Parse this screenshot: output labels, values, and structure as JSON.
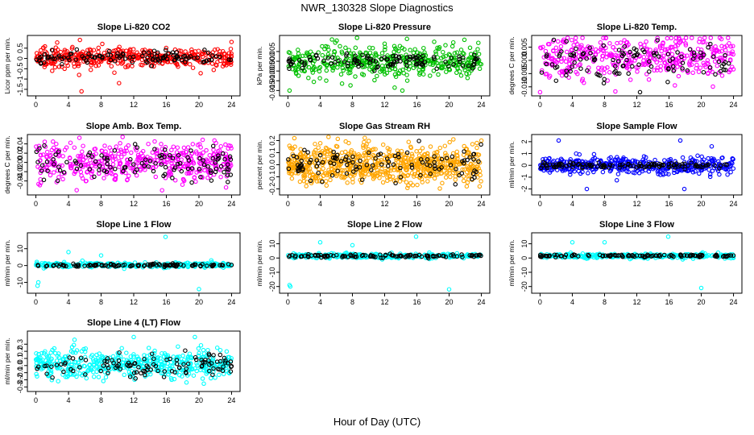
{
  "figure": {
    "title": "NWR_130328  Slope Diagnostics",
    "xlabel": "Hour of Day (UTC)"
  },
  "chart_data": [
    {
      "type": "scatter",
      "title": "Slope Li-820 CO2",
      "xlabel": "",
      "ylabel": "Licor ppm per min.",
      "xlim": [
        0,
        24
      ],
      "ylim": [
        -1.7,
        1.0
      ],
      "xticks": [
        "0",
        "4",
        "8",
        "12",
        "16",
        "20",
        "24"
      ],
      "yticks": [
        -1.5,
        -1.0,
        -0.5,
        0.0,
        0.5
      ],
      "ytick_labels": [
        "-1.5",
        "-1",
        "-0.5",
        "0",
        "0.5"
      ],
      "series": [
        {
          "color": "#ff0000",
          "n": 420,
          "center": 0.05,
          "spread": 0.22,
          "outliers": [
            [
              2.0,
              -0.6
            ],
            [
              5.3,
              -0.8
            ],
            [
              5.6,
              -1.6
            ],
            [
              10.2,
              -1.2
            ],
            [
              24.0,
              0.8
            ],
            [
              5.4,
              0.9
            ]
          ]
        },
        {
          "color": "#000000",
          "n": 110,
          "center": 0.05,
          "spread": 0.15,
          "outliers": []
        }
      ]
    },
    {
      "type": "scatter",
      "title": "Slope Li-820 Pressure",
      "xlabel": "",
      "ylabel": "kPa per min.",
      "xlim": [
        0,
        24
      ],
      "ylim": [
        -0.0165,
        0.012
      ],
      "xticks": [
        "0",
        "4",
        "8",
        "12",
        "16",
        "20",
        "24"
      ],
      "yticks": [
        -0.015,
        -0.01,
        -0.005,
        0.0,
        0.005
      ],
      "ytick_labels": [
        "-0.015",
        "-0.010",
        "-0.005",
        "0.000",
        "0.005"
      ],
      "series": [
        {
          "color": "#00c000",
          "n": 420,
          "center": 0.0,
          "spread": 0.0045,
          "outliers": [
            [
              21.9,
              0.011
            ],
            [
              12.0,
              0.009
            ],
            [
              0.2,
              -0.015
            ],
            [
              14.2,
              -0.015
            ]
          ]
        },
        {
          "color": "#000000",
          "n": 110,
          "center": 0.0,
          "spread": 0.002,
          "outliers": []
        }
      ]
    },
    {
      "type": "scatter",
      "title": "Slope Li-820 Temp.",
      "xlabel": "",
      "ylabel": "degrees C per min.",
      "xlim": [
        0,
        24
      ],
      "ylim": [
        -0.0125,
        0.0085
      ],
      "xticks": [
        "0",
        "4",
        "8",
        "12",
        "16",
        "20",
        "24"
      ],
      "yticks": [
        -0.01,
        -0.005,
        0.0,
        0.005
      ],
      "ytick_labels": [
        "-0.010",
        "-0.005",
        "0.000",
        "0.005"
      ],
      "series": [
        {
          "color": "#ff00ff",
          "n": 420,
          "center": 0.0015,
          "spread": 0.004,
          "outliers": [
            [
              0.0,
              -0.012
            ],
            [
              22.5,
              0.008
            ]
          ]
        },
        {
          "color": "#000000",
          "n": 110,
          "center": 0.0,
          "spread": 0.0035,
          "outliers": [
            [
              12.4,
              -0.012
            ]
          ]
        }
      ]
    },
    {
      "type": "scatter",
      "title": "Slope Amb. Box Temp.",
      "xlabel": "",
      "ylabel": "degrees C per min.",
      "xlim": [
        0,
        24
      ],
      "ylim": [
        -0.065,
        0.055
      ],
      "xticks": [
        "0",
        "4",
        "8",
        "12",
        "16",
        "20",
        "24"
      ],
      "yticks": [
        -0.04,
        -0.02,
        0.0,
        0.02,
        0.04
      ],
      "ytick_labels": [
        "-0.04",
        "-0.02",
        "0.00",
        "0.02",
        "0.04"
      ],
      "series": [
        {
          "color": "#ff00ff",
          "n": 460,
          "center": 0.0,
          "spread": 0.02,
          "outliers": [
            [
              5.0,
              -0.06
            ]
          ]
        },
        {
          "color": "#000000",
          "n": 110,
          "center": 0.0,
          "spread": 0.018,
          "outliers": []
        }
      ]
    },
    {
      "type": "scatter",
      "title": "Slope Gas Stream RH",
      "xlabel": "",
      "ylabel": "percent per min.",
      "xlim": [
        0,
        24
      ],
      "ylim": [
        -0.23,
        0.23
      ],
      "xticks": [
        "0",
        "4",
        "8",
        "12",
        "16",
        "20",
        "24"
      ],
      "yticks": [
        -0.2,
        -0.1,
        0.0,
        0.1,
        0.2
      ],
      "ytick_labels": [
        "-0.2",
        "-0.1",
        "0.0",
        "0.1",
        "0.2"
      ],
      "series": [
        {
          "color": "#ffa500",
          "n": 700,
          "center": 0.0,
          "spread": 0.08,
          "outliers": [
            [
              0.8,
              0.22
            ],
            [
              24.0,
              0.2
            ]
          ]
        },
        {
          "color": "#000000",
          "n": 110,
          "center": 0.0,
          "spread": 0.07,
          "outliers": []
        }
      ]
    },
    {
      "type": "scatter",
      "title": "Slope Sample Flow",
      "xlabel": "",
      "ylabel": "ml/min per min.",
      "xlim": [
        0,
        24
      ],
      "ylim": [
        -2.3,
        2.4
      ],
      "xticks": [
        "0",
        "4",
        "8",
        "12",
        "16",
        "20",
        "24"
      ],
      "yticks": [
        -2,
        -1,
        0,
        1,
        2
      ],
      "ytick_labels": [
        "-2",
        "-1",
        "0",
        "1",
        "2"
      ],
      "series": [
        {
          "color": "#0000ff",
          "n": 420,
          "center": 0.0,
          "spread": 0.35,
          "outliers": [
            [
              2.3,
              2.1
            ],
            [
              5.8,
              -2.0
            ],
            [
              17.4,
              2.1
            ],
            [
              17.9,
              -2.0
            ],
            [
              21.3,
              1.6
            ]
          ]
        },
        {
          "color": "#000000",
          "n": 110,
          "center": 0.0,
          "spread": 0.12,
          "outliers": []
        }
      ]
    },
    {
      "type": "scatter",
      "title": "Slope Line 1 Flow",
      "xlabel": "",
      "ylabel": "ml/min per min.",
      "xlim": [
        0,
        24
      ],
      "ylim": [
        -15,
        18
      ],
      "xticks": [
        "0",
        "4",
        "8",
        "12",
        "16",
        "20",
        "24"
      ],
      "yticks": [
        -10,
        0,
        10
      ],
      "ytick_labels": [
        "-10",
        "0",
        "10"
      ],
      "series": [
        {
          "color": "#00ffff",
          "n": 300,
          "center": 0.3,
          "spread": 0.7,
          "outliers": [
            [
              0.3,
              -10
            ],
            [
              0.2,
              -12
            ],
            [
              4.0,
              8
            ],
            [
              8.0,
              6
            ],
            [
              15.9,
              17
            ],
            [
              20.0,
              -14
            ]
          ]
        },
        {
          "color": "#000000",
          "n": 110,
          "center": 0.2,
          "spread": 0.4,
          "outliers": []
        }
      ]
    },
    {
      "type": "scatter",
      "title": "Slope Line 2 Flow",
      "xlabel": "",
      "ylabel": "ml/min per min.",
      "xlim": [
        0,
        24
      ],
      "ylim": [
        -23,
        16
      ],
      "xticks": [
        "0",
        "4",
        "8",
        "12",
        "16",
        "20",
        "24"
      ],
      "yticks": [
        -20,
        -10,
        0,
        10
      ],
      "ytick_labels": [
        "-20",
        "-10",
        "0",
        "10"
      ],
      "series": [
        {
          "color": "#00ffff",
          "n": 300,
          "center": 1.5,
          "spread": 0.8,
          "outliers": [
            [
              0.2,
              -19
            ],
            [
              0.3,
              -20
            ],
            [
              4.0,
              11
            ],
            [
              8.0,
              9
            ],
            [
              15.9,
              15
            ],
            [
              20.0,
              -22
            ]
          ]
        },
        {
          "color": "#000000",
          "n": 110,
          "center": 1.5,
          "spread": 0.5,
          "outliers": []
        }
      ]
    },
    {
      "type": "scatter",
      "title": "Slope Line 3 Flow",
      "xlabel": "",
      "ylabel": "ml/min per min.",
      "xlim": [
        0,
        24
      ],
      "ylim": [
        -23,
        16
      ],
      "xticks": [
        "0",
        "4",
        "8",
        "12",
        "16",
        "20",
        "24"
      ],
      "yticks": [
        -20,
        -10,
        0,
        10
      ],
      "ytick_labels": [
        "-20",
        "-10",
        "0",
        "10"
      ],
      "series": [
        {
          "color": "#00ffff",
          "n": 300,
          "center": 1.5,
          "spread": 0.8,
          "outliers": [
            [
              4.0,
              11
            ],
            [
              8.0,
              11
            ],
            [
              15.9,
              15
            ],
            [
              20.0,
              -21
            ]
          ]
        },
        {
          "color": "#000000",
          "n": 110,
          "center": 1.5,
          "spread": 0.5,
          "outliers": []
        }
      ]
    },
    {
      "type": "scatter",
      "title": "Slope Line 4 (LT) Flow",
      "xlabel": "",
      "ylabel": "ml/min per min.",
      "xlim": [
        0,
        24
      ],
      "ylim": [
        -0.33,
        0.45
      ],
      "xticks": [
        "0",
        "4",
        "8",
        "12",
        "16",
        "20",
        "24"
      ],
      "yticks": [
        -0.3,
        -0.2,
        -0.1,
        0.0,
        0.1,
        0.2,
        0.3
      ],
      "ytick_labels": [
        "-0.3",
        "-0.2",
        "-0.1",
        "0.0",
        "0.1",
        "0.2",
        "0.3"
      ],
      "series": [
        {
          "color": "#00ffff",
          "n": 480,
          "center": 0.02,
          "spread": 0.1,
          "outliers": [
            [
              12.0,
              0.4
            ],
            [
              19.5,
              0.4
            ]
          ]
        },
        {
          "color": "#000000",
          "n": 110,
          "center": 0.0,
          "spread": 0.08,
          "outliers": []
        }
      ]
    }
  ]
}
